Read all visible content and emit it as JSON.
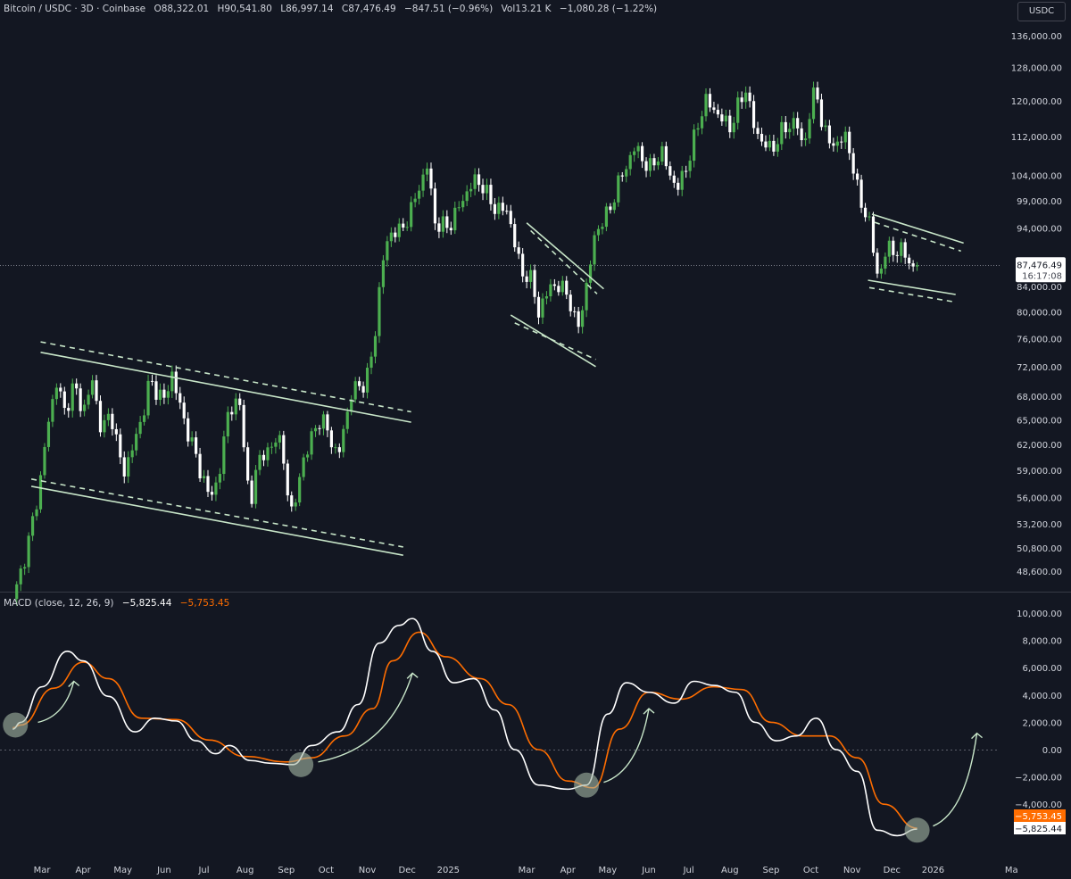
{
  "header": {
    "symbol": "Bitcoin / USDC · 3D · Coinbase",
    "open": "O88,322.01",
    "high": "H90,541.80",
    "low": "L86,997.14",
    "close": "C87,476.49",
    "change": "−847.51 (−0.96%)",
    "volume": "Vol13.21 K",
    "volume_change": "−1,080.28 (−1.22%)"
  },
  "currency_button": "USDC",
  "macd_legend": {
    "label": "MACD (close, 12, 26, 9)",
    "macd": "−5,825.44",
    "signal": "−5,753.45"
  },
  "colors": {
    "background": "#131722",
    "bull": "#4caf50",
    "bear": "#ffffff",
    "macd": "#ffffff",
    "signal": "#ff6d00",
    "drawing": "#c8e6c9",
    "circle": "#a5b8a5"
  },
  "chart_data": {
    "type": "candlestick",
    "timeframe": "3D",
    "y_scale": "log",
    "ylim": [
      47500,
      140000
    ],
    "price_ticks": [
      "136,000.00",
      "128,000.00",
      "120,000.00",
      "112,000.00",
      "104,000.00",
      "99,000.00",
      "94,000.00",
      "84,000.00",
      "80,000.00",
      "76,000.00",
      "72,000.00",
      "68,000.00",
      "65,000.00",
      "62,000.00",
      "59,000.00",
      "56,000.00",
      "53,200.00",
      "50,800.00",
      "48,600.00"
    ],
    "last_price": {
      "value": 87476.49,
      "label": "87,476.49",
      "countdown": "16:17:08"
    },
    "time_ticks": [
      {
        "date": "2024-03-01",
        "label": "Mar"
      },
      {
        "date": "2024-04-01",
        "label": "Apr"
      },
      {
        "date": "2024-05-01",
        "label": "May"
      },
      {
        "date": "2024-06-01",
        "label": "Jun"
      },
      {
        "date": "2024-07-01",
        "label": "Jul"
      },
      {
        "date": "2024-08-01",
        "label": "Aug"
      },
      {
        "date": "2024-09-01",
        "label": "Sep"
      },
      {
        "date": "2024-10-01",
        "label": "Oct"
      },
      {
        "date": "2024-11-01",
        "label": "Nov"
      },
      {
        "date": "2024-12-01",
        "label": "Dec"
      },
      {
        "date": "2025-01-01",
        "label": "2025"
      },
      {
        "date": "2025-03-01",
        "label": "Mar"
      },
      {
        "date": "2025-04-01",
        "label": "Apr"
      },
      {
        "date": "2025-05-01",
        "label": "May"
      },
      {
        "date": "2025-06-01",
        "label": "Jun"
      },
      {
        "date": "2025-07-01",
        "label": "Jul"
      },
      {
        "date": "2025-08-01",
        "label": "Aug"
      },
      {
        "date": "2025-09-01",
        "label": "Sep"
      },
      {
        "date": "2025-10-01",
        "label": "Oct"
      },
      {
        "date": "2025-11-01",
        "label": "Nov"
      },
      {
        "date": "2025-12-01",
        "label": "Dec"
      },
      {
        "date": "2026-01-01",
        "label": "2026"
      },
      {
        "date": "2026-03-01",
        "label": "Ma"
      }
    ],
    "closes": [
      [
        "2024-02-11",
        47000
      ],
      [
        "2024-02-20",
        51500
      ],
      [
        "2024-02-28",
        57000
      ],
      [
        "2024-03-05",
        64000
      ],
      [
        "2024-03-12",
        70000
      ],
      [
        "2024-03-18",
        66000
      ],
      [
        "2024-03-25",
        69500
      ],
      [
        "2024-04-01",
        66000
      ],
      [
        "2024-04-08",
        70000
      ],
      [
        "2024-04-15",
        63500
      ],
      [
        "2024-04-22",
        66000
      ],
      [
        "2024-05-01",
        58500
      ],
      [
        "2024-05-08",
        61500
      ],
      [
        "2024-05-15",
        65000
      ],
      [
        "2024-05-21",
        70000
      ],
      [
        "2024-06-01",
        67500
      ],
      [
        "2024-06-07",
        71000
      ],
      [
        "2024-06-14",
        66000
      ],
      [
        "2024-06-24",
        61000
      ],
      [
        "2024-07-05",
        56000
      ],
      [
        "2024-07-12",
        58000
      ],
      [
        "2024-07-20",
        67000
      ],
      [
        "2024-07-29",
        66500
      ],
      [
        "2024-08-05",
        54000
      ],
      [
        "2024-08-10",
        60500
      ],
      [
        "2024-08-20",
        61000
      ],
      [
        "2024-08-25",
        64000
      ],
      [
        "2024-09-06",
        53800
      ],
      [
        "2024-09-13",
        60000
      ],
      [
        "2024-09-27",
        65500
      ],
      [
        "2024-10-10",
        60500
      ],
      [
        "2024-10-20",
        68500
      ],
      [
        "2024-10-31",
        70000
      ],
      [
        "2024-11-06",
        75000
      ],
      [
        "2024-11-12",
        88000
      ],
      [
        "2024-11-20",
        94000
      ],
      [
        "2024-11-26",
        93000
      ],
      [
        "2024-12-05",
        98000
      ],
      [
        "2024-12-16",
        106000
      ],
      [
        "2024-12-22",
        95000
      ],
      [
        "2025-01-01",
        94000
      ],
      [
        "2025-01-07",
        97000
      ],
      [
        "2025-01-20",
        103000
      ],
      [
        "2025-01-27",
        102000
      ],
      [
        "2025-02-03",
        98000
      ],
      [
        "2025-02-15",
        97000
      ],
      [
        "2025-02-25",
        86000
      ],
      [
        "2025-03-03",
        86000
      ],
      [
        "2025-03-10",
        80000
      ],
      [
        "2025-03-20",
        84500
      ],
      [
        "2025-04-01",
        83000
      ],
      [
        "2025-04-08",
        77000
      ],
      [
        "2025-04-15",
        84000
      ],
      [
        "2025-04-22",
        93500
      ],
      [
        "2025-05-01",
        96500
      ],
      [
        "2025-05-10",
        103000
      ],
      [
        "2025-05-22",
        110000
      ],
      [
        "2025-06-01",
        105000
      ],
      [
        "2025-06-10",
        109000
      ],
      [
        "2025-06-22",
        101000
      ],
      [
        "2025-07-01",
        107000
      ],
      [
        "2025-07-10",
        117000
      ],
      [
        "2025-07-14",
        120000
      ],
      [
        "2025-08-01",
        114000
      ],
      [
        "2025-08-13",
        123000
      ],
      [
        "2025-08-20",
        113000
      ],
      [
        "2025-09-01",
        109000
      ],
      [
        "2025-09-10",
        113500
      ],
      [
        "2025-09-20",
        115500
      ],
      [
        "2025-09-25",
        109500
      ],
      [
        "2025-10-05",
        124000
      ],
      [
        "2025-10-10",
        113000
      ],
      [
        "2025-10-20",
        110000
      ],
      [
        "2025-10-28",
        112500
      ],
      [
        "2025-11-04",
        102000
      ],
      [
        "2025-11-14",
        94500
      ],
      [
        "2025-11-21",
        85000
      ],
      [
        "2025-11-28",
        91000
      ],
      [
        "2025-12-05",
        89500
      ],
      [
        "2025-12-12",
        90000
      ],
      [
        "2025-12-17",
        86000
      ],
      [
        "2025-12-20",
        87476.49
      ]
    ],
    "macd": {
      "ylim": [
        -6500,
        11000
      ],
      "ticks": [
        10000,
        8000,
        6000,
        4000,
        2000,
        0,
        -2000,
        -4000
      ],
      "tick_labels": [
        "10,000.00",
        "8,000.00",
        "6,000.00",
        "4,000.00",
        "2,000.00",
        "0.00",
        "−2,000.00",
        "−4,000.00"
      ],
      "macd_line": [
        [
          "2024-02-08",
          1500
        ],
        [
          "2024-02-14",
          2000
        ],
        [
          "2024-03-01",
          4600
        ],
        [
          "2024-03-20",
          7200
        ],
        [
          "2024-04-01",
          6500
        ],
        [
          "2024-04-20",
          3900
        ],
        [
          "2024-05-10",
          1300
        ],
        [
          "2024-05-25",
          2300
        ],
        [
          "2024-06-10",
          2100
        ],
        [
          "2024-06-25",
          650
        ],
        [
          "2024-07-10",
          -300
        ],
        [
          "2024-07-20",
          300
        ],
        [
          "2024-08-05",
          -800
        ],
        [
          "2024-08-20",
          -1000
        ],
        [
          "2024-09-06",
          -1100
        ],
        [
          "2024-09-20",
          300
        ],
        [
          "2024-10-10",
          1300
        ],
        [
          "2024-10-25",
          3300
        ],
        [
          "2024-11-10",
          7800
        ],
        [
          "2024-11-25",
          9100
        ],
        [
          "2024-12-05",
          9600
        ],
        [
          "2024-12-20",
          7200
        ],
        [
          "2025-01-05",
          4900
        ],
        [
          "2025-01-20",
          5200
        ],
        [
          "2025-02-05",
          2900
        ],
        [
          "2025-02-20",
          0
        ],
        [
          "2025-03-10",
          -2600
        ],
        [
          "2025-04-01",
          -2900
        ],
        [
          "2025-04-15",
          -2600
        ],
        [
          "2025-05-01",
          2600
        ],
        [
          "2025-05-15",
          4900
        ],
        [
          "2025-06-01",
          4200
        ],
        [
          "2025-06-20",
          3400
        ],
        [
          "2025-07-05",
          5000
        ],
        [
          "2025-07-20",
          4700
        ],
        [
          "2025-08-05",
          4200
        ],
        [
          "2025-08-20",
          2000
        ],
        [
          "2025-09-05",
          650
        ],
        [
          "2025-09-20",
          1000
        ],
        [
          "2025-10-05",
          2300
        ],
        [
          "2025-10-20",
          0
        ],
        [
          "2025-11-05",
          -1600
        ],
        [
          "2025-11-20",
          -5900
        ],
        [
          "2025-12-05",
          -6300
        ],
        [
          "2025-12-20",
          -5825.44
        ]
      ],
      "signal_line": [
        [
          "2024-02-08",
          1600
        ],
        [
          "2024-02-14",
          1800
        ],
        [
          "2024-03-10",
          4500
        ],
        [
          "2024-04-01",
          6400
        ],
        [
          "2024-04-20",
          5200
        ],
        [
          "2024-05-15",
          2300
        ],
        [
          "2024-06-10",
          2200
        ],
        [
          "2024-07-05",
          700
        ],
        [
          "2024-08-01",
          -500
        ],
        [
          "2024-09-01",
          -900
        ],
        [
          "2024-09-20",
          -600
        ],
        [
          "2024-10-15",
          1000
        ],
        [
          "2024-11-05",
          3000
        ],
        [
          "2024-11-20",
          6500
        ],
        [
          "2024-12-10",
          8600
        ],
        [
          "2024-12-30",
          6800
        ],
        [
          "2025-01-25",
          5200
        ],
        [
          "2025-02-15",
          3300
        ],
        [
          "2025-03-10",
          0
        ],
        [
          "2025-04-01",
          -2300
        ],
        [
          "2025-04-20",
          -2800
        ],
        [
          "2025-05-10",
          1500
        ],
        [
          "2025-06-01",
          4200
        ],
        [
          "2025-06-25",
          3700
        ],
        [
          "2025-07-20",
          4600
        ],
        [
          "2025-08-10",
          4400
        ],
        [
          "2025-09-01",
          2000
        ],
        [
          "2025-09-25",
          1000
        ],
        [
          "2025-10-15",
          1000
        ],
        [
          "2025-11-05",
          -600
        ],
        [
          "2025-11-25",
          -4000
        ],
        [
          "2025-12-20",
          -5753.45
        ]
      ],
      "last_labels": {
        "signal": "−5,753.45",
        "macd": "−5,825.44"
      }
    },
    "drawings": {
      "trendlines": [
        {
          "style": "solid",
          "from": [
            "2024-02-29",
            74000
          ],
          "to": [
            "2024-12-04",
            64700
          ]
        },
        {
          "style": "dashed",
          "from": [
            "2024-02-29",
            75500
          ],
          "to": [
            "2024-12-04",
            66000
          ]
        },
        {
          "style": "solid",
          "from": [
            "2024-02-22",
            57200
          ],
          "to": [
            "2024-11-28",
            50100
          ]
        },
        {
          "style": "dashed",
          "from": [
            "2024-02-22",
            58000
          ],
          "to": [
            "2024-11-28",
            50900
          ]
        },
        {
          "style": "solid",
          "from": [
            "2025-03-01",
            94900
          ],
          "to": [
            "2025-04-28",
            83600
          ]
        },
        {
          "style": "dashed",
          "from": [
            "2025-03-04",
            93500
          ],
          "to": [
            "2025-04-23",
            82800
          ]
        },
        {
          "style": "solid",
          "from": [
            "2025-02-17",
            79500
          ],
          "to": [
            "2025-04-22",
            72000
          ]
        },
        {
          "style": "dashed",
          "from": [
            "2025-02-20",
            78300
          ],
          "to": [
            "2025-04-22",
            73000
          ]
        },
        {
          "style": "solid",
          "from": [
            "2025-11-16",
            96500
          ],
          "to": [
            "2026-01-24",
            91300
          ]
        },
        {
          "style": "dashed",
          "from": [
            "2025-11-18",
            95000
          ],
          "to": [
            "2026-01-22",
            89900
          ]
        },
        {
          "style": "solid",
          "from": [
            "2025-11-13",
            85000
          ],
          "to": [
            "2026-01-18",
            82700
          ]
        },
        {
          "style": "dashed",
          "from": [
            "2025-11-14",
            83800
          ],
          "to": [
            "2026-01-18",
            81500
          ]
        }
      ],
      "macd_circles": [
        [
          "2024-02-10",
          1800
        ],
        [
          "2024-09-12",
          -1100
        ],
        [
          "2025-04-15",
          -2600
        ],
        [
          "2025-12-20",
          -5900
        ]
      ],
      "macd_arrows": [
        {
          "from": [
            "2024-02-27",
            2000
          ],
          "to": [
            "2024-03-25",
            5000
          ]
        },
        {
          "from": [
            "2024-09-25",
            -900
          ],
          "to": [
            "2024-12-05",
            5600
          ]
        },
        {
          "from": [
            "2025-04-28",
            -2400
          ],
          "to": [
            "2025-06-01",
            3000
          ]
        },
        {
          "from": [
            "2026-01-01",
            -5600
          ],
          "to": [
            "2026-02-03",
            1200
          ]
        }
      ]
    }
  }
}
